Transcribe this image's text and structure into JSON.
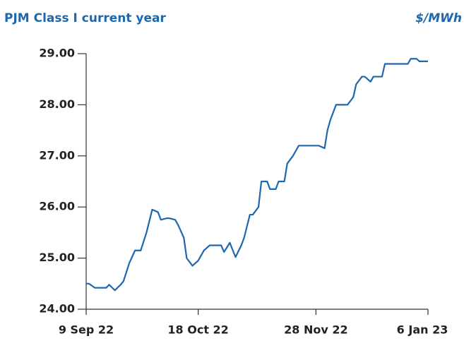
{
  "chart_data": {
    "type": "line",
    "title": "PJM Class I current year",
    "unit": "$/MWh",
    "x": [
      "2022-09-09",
      "2022-09-10",
      "2022-09-12",
      "2022-09-16",
      "2022-09-17",
      "2022-09-19",
      "2022-09-21",
      "2022-09-22",
      "2022-09-24",
      "2022-09-26",
      "2022-09-28",
      "2022-09-30",
      "2022-10-02",
      "2022-10-04",
      "2022-10-05",
      "2022-10-07",
      "2022-10-08",
      "2022-10-10",
      "2022-10-11",
      "2022-10-13",
      "2022-10-14",
      "2022-10-16",
      "2022-10-18",
      "2022-10-20",
      "2022-10-22",
      "2022-10-26",
      "2022-10-27",
      "2022-10-29",
      "2022-10-31",
      "2022-11-02",
      "2022-11-03",
      "2022-11-05",
      "2022-11-06",
      "2022-11-08",
      "2022-11-09",
      "2022-11-11",
      "2022-11-12",
      "2022-11-14",
      "2022-11-15",
      "2022-11-17",
      "2022-11-18",
      "2022-11-20",
      "2022-11-22",
      "2022-11-29",
      "2022-12-01",
      "2022-12-02",
      "2022-12-03",
      "2022-12-05",
      "2022-12-09",
      "2022-12-11",
      "2022-12-12",
      "2022-12-14",
      "2022-12-15",
      "2022-12-17",
      "2022-12-18",
      "2022-12-21",
      "2022-12-22",
      "2022-12-30",
      "2022-12-31",
      "2023-01-02",
      "2023-01-03",
      "2023-01-06"
    ],
    "series": [
      {
        "name": "PJM Class I current year",
        "color": "#1f67ad",
        "values": [
          24.5,
          24.5,
          24.42,
          24.42,
          24.48,
          24.37,
          24.48,
          24.55,
          24.9,
          25.15,
          25.15,
          25.5,
          25.95,
          25.9,
          25.75,
          25.78,
          25.78,
          25.75,
          25.65,
          25.4,
          25.0,
          24.85,
          24.95,
          25.15,
          25.25,
          25.25,
          25.12,
          25.3,
          25.02,
          25.25,
          25.4,
          25.85,
          25.85,
          26.0,
          26.5,
          26.5,
          26.35,
          26.35,
          26.5,
          26.5,
          26.85,
          27.0,
          27.2,
          27.2,
          27.15,
          27.5,
          27.7,
          28.0,
          28.0,
          28.15,
          28.4,
          28.55,
          28.55,
          28.45,
          28.55,
          28.55,
          28.8,
          28.8,
          28.9,
          28.9,
          28.85,
          28.85
        ]
      }
    ],
    "xlim": [
      "2022-09-09",
      "2023-01-06"
    ],
    "xticks": [
      {
        "value": "2022-09-09",
        "label": "9 Sep 22"
      },
      {
        "value": "2022-10-18",
        "label": "18 Oct 22"
      },
      {
        "value": "2022-11-28",
        "label": "28 Nov 22"
      },
      {
        "value": "2023-01-06",
        "label": "6 Jan 23"
      }
    ],
    "ylim": [
      24,
      29
    ],
    "yticks": [
      {
        "value": 24,
        "label": "24.00"
      },
      {
        "value": 25,
        "label": "25.00"
      },
      {
        "value": 26,
        "label": "26.00"
      },
      {
        "value": 27,
        "label": "27.00"
      },
      {
        "value": 28,
        "label": "28.00"
      },
      {
        "value": 29,
        "label": "29.00"
      }
    ]
  }
}
